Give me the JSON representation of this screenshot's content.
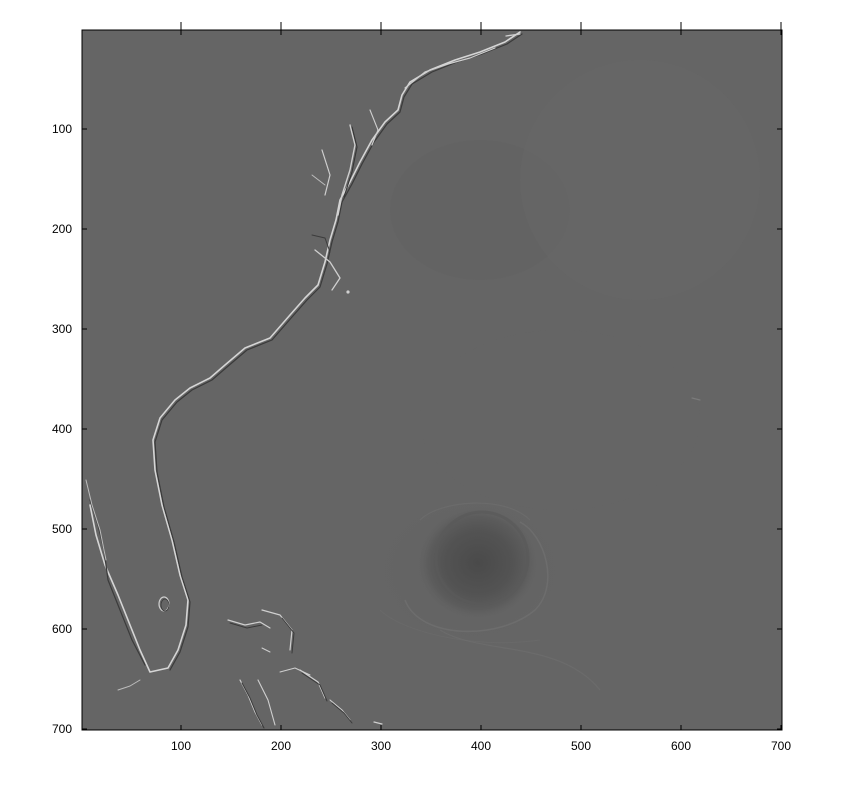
{
  "image": {
    "description_free": true,
    "axes": {
      "x": {
        "min": 1,
        "max": 701,
        "ticks": [
          100,
          200,
          300,
          400,
          500,
          600,
          700
        ]
      },
      "y": {
        "min": 1,
        "max": 701,
        "reversed": true,
        "ticks": [
          100,
          200,
          300,
          400,
          500,
          600,
          700
        ]
      }
    },
    "colors": {
      "field": "#656565",
      "axis": "#000000",
      "background": "#ffffff"
    }
  },
  "labels": {
    "x_ticks": [
      "100",
      "200",
      "300",
      "400",
      "500",
      "600",
      "700"
    ],
    "y_ticks": [
      "100",
      "200",
      "300",
      "400",
      "500",
      "600",
      "700"
    ]
  }
}
